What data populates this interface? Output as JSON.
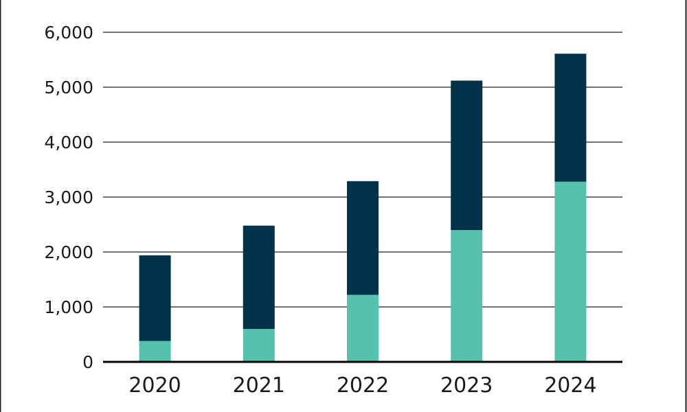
{
  "chart_data": {
    "type": "bar",
    "stacked": true,
    "title": "",
    "xlabel": "",
    "ylabel": "",
    "categories": [
      "2020",
      "2021",
      "2022",
      "2023",
      "2024"
    ],
    "series": [
      {
        "values": [
          380,
          600,
          1220,
          2400,
          3280
        ],
        "color": "#55c2ae"
      },
      {
        "values": [
          1560,
          1880,
          2070,
          2720,
          2330
        ],
        "color": "#003349"
      }
    ],
    "ylim": [
      0,
      6000
    ],
    "yticks": [
      0,
      1000,
      2000,
      3000,
      4000,
      5000,
      6000
    ],
    "ytick_labels": [
      "0",
      "1,000",
      "2,000",
      "3,000",
      "4,000",
      "5,000",
      "6,000"
    ],
    "grid": true,
    "legend": "none"
  }
}
